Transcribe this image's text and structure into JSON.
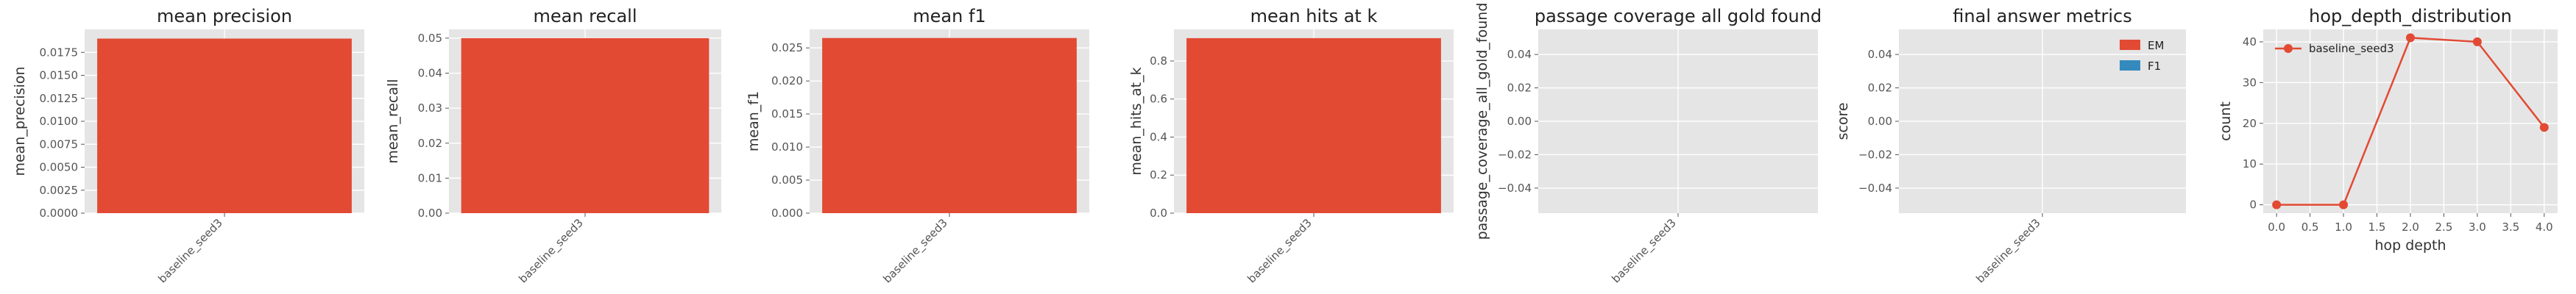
{
  "figure": {
    "background": "#ffffff",
    "panel_bg": "#e5e5e5",
    "grid_color": "#ffffff"
  },
  "chart_data": [
    {
      "type": "bar",
      "title": "mean precision",
      "xlabel": "",
      "ylabel": "mean_precision",
      "categories": [
        "baseline_seed3"
      ],
      "values": [
        0.019
      ],
      "ylim": [
        0,
        0.02
      ],
      "yticks": [
        "0.0000",
        "0.0025",
        "0.0050",
        "0.0075",
        "0.0100",
        "0.0125",
        "0.0150",
        "0.0175"
      ],
      "color": "#e24a33",
      "grid": true
    },
    {
      "type": "bar",
      "title": "mean recall",
      "xlabel": "",
      "ylabel": "mean_recall",
      "categories": [
        "baseline_seed3"
      ],
      "values": [
        0.05
      ],
      "ylim": [
        0,
        0.0525
      ],
      "yticks": [
        "0.00",
        "0.01",
        "0.02",
        "0.03",
        "0.04",
        "0.05"
      ],
      "color": "#e24a33",
      "grid": true
    },
    {
      "type": "bar",
      "title": "mean f1",
      "xlabel": "",
      "ylabel": "mean_f1",
      "categories": [
        "baseline_seed3"
      ],
      "values": [
        0.0265
      ],
      "ylim": [
        0,
        0.0278
      ],
      "yticks": [
        "0.000",
        "0.005",
        "0.010",
        "0.015",
        "0.020",
        "0.025"
      ],
      "color": "#e24a33",
      "grid": true
    },
    {
      "type": "bar",
      "title": "mean hits at k",
      "xlabel": "",
      "ylabel": "mean_hits_at_k",
      "categories": [
        "baseline_seed3"
      ],
      "values": [
        0.92
      ],
      "ylim": [
        0,
        0.966
      ],
      "yticks": [
        "0.0",
        "0.2",
        "0.4",
        "0.6",
        "0.8"
      ],
      "color": "#e24a33",
      "grid": true
    },
    {
      "type": "bar",
      "title": "passage coverage all gold found",
      "xlabel": "",
      "ylabel": "passage_coverage_all_gold_found",
      "categories": [
        "baseline_seed3"
      ],
      "values": [
        0
      ],
      "ylim": [
        -0.055,
        0.055
      ],
      "yticks": [
        "−0.04",
        "−0.02",
        "0.00",
        "0.02",
        "0.04"
      ],
      "color": "#e24a33",
      "grid": true
    },
    {
      "type": "bar",
      "title": "final answer metrics",
      "xlabel": "",
      "ylabel": "score",
      "categories": [
        "baseline_seed3"
      ],
      "series": [
        {
          "name": "EM",
          "values": [
            0
          ],
          "color": "#e24a33"
        },
        {
          "name": "F1",
          "values": [
            0
          ],
          "color": "#348abd"
        }
      ],
      "ylim": [
        -0.055,
        0.055
      ],
      "yticks": [
        "−0.04",
        "−0.02",
        "0.00",
        "0.02",
        "0.04"
      ],
      "legend": "top-right",
      "grid": true
    },
    {
      "type": "line",
      "title": "hop_depth_distribution",
      "xlabel": "hop depth",
      "ylabel": "count",
      "x": [
        0,
        1,
        2,
        3,
        4
      ],
      "series": [
        {
          "name": "baseline_seed3",
          "values": [
            0,
            0,
            41,
            40,
            19
          ],
          "color": "#e24a33"
        }
      ],
      "xlim": [
        -0.2,
        4.2
      ],
      "ylim": [
        -2.05,
        43.05
      ],
      "xticks": [
        "0.0",
        "0.5",
        "1.0",
        "1.5",
        "2.0",
        "2.5",
        "3.0",
        "3.5",
        "4.0"
      ],
      "yticks": [
        "0",
        "10",
        "20",
        "30",
        "40"
      ],
      "legend": "top-left",
      "grid": true
    }
  ]
}
